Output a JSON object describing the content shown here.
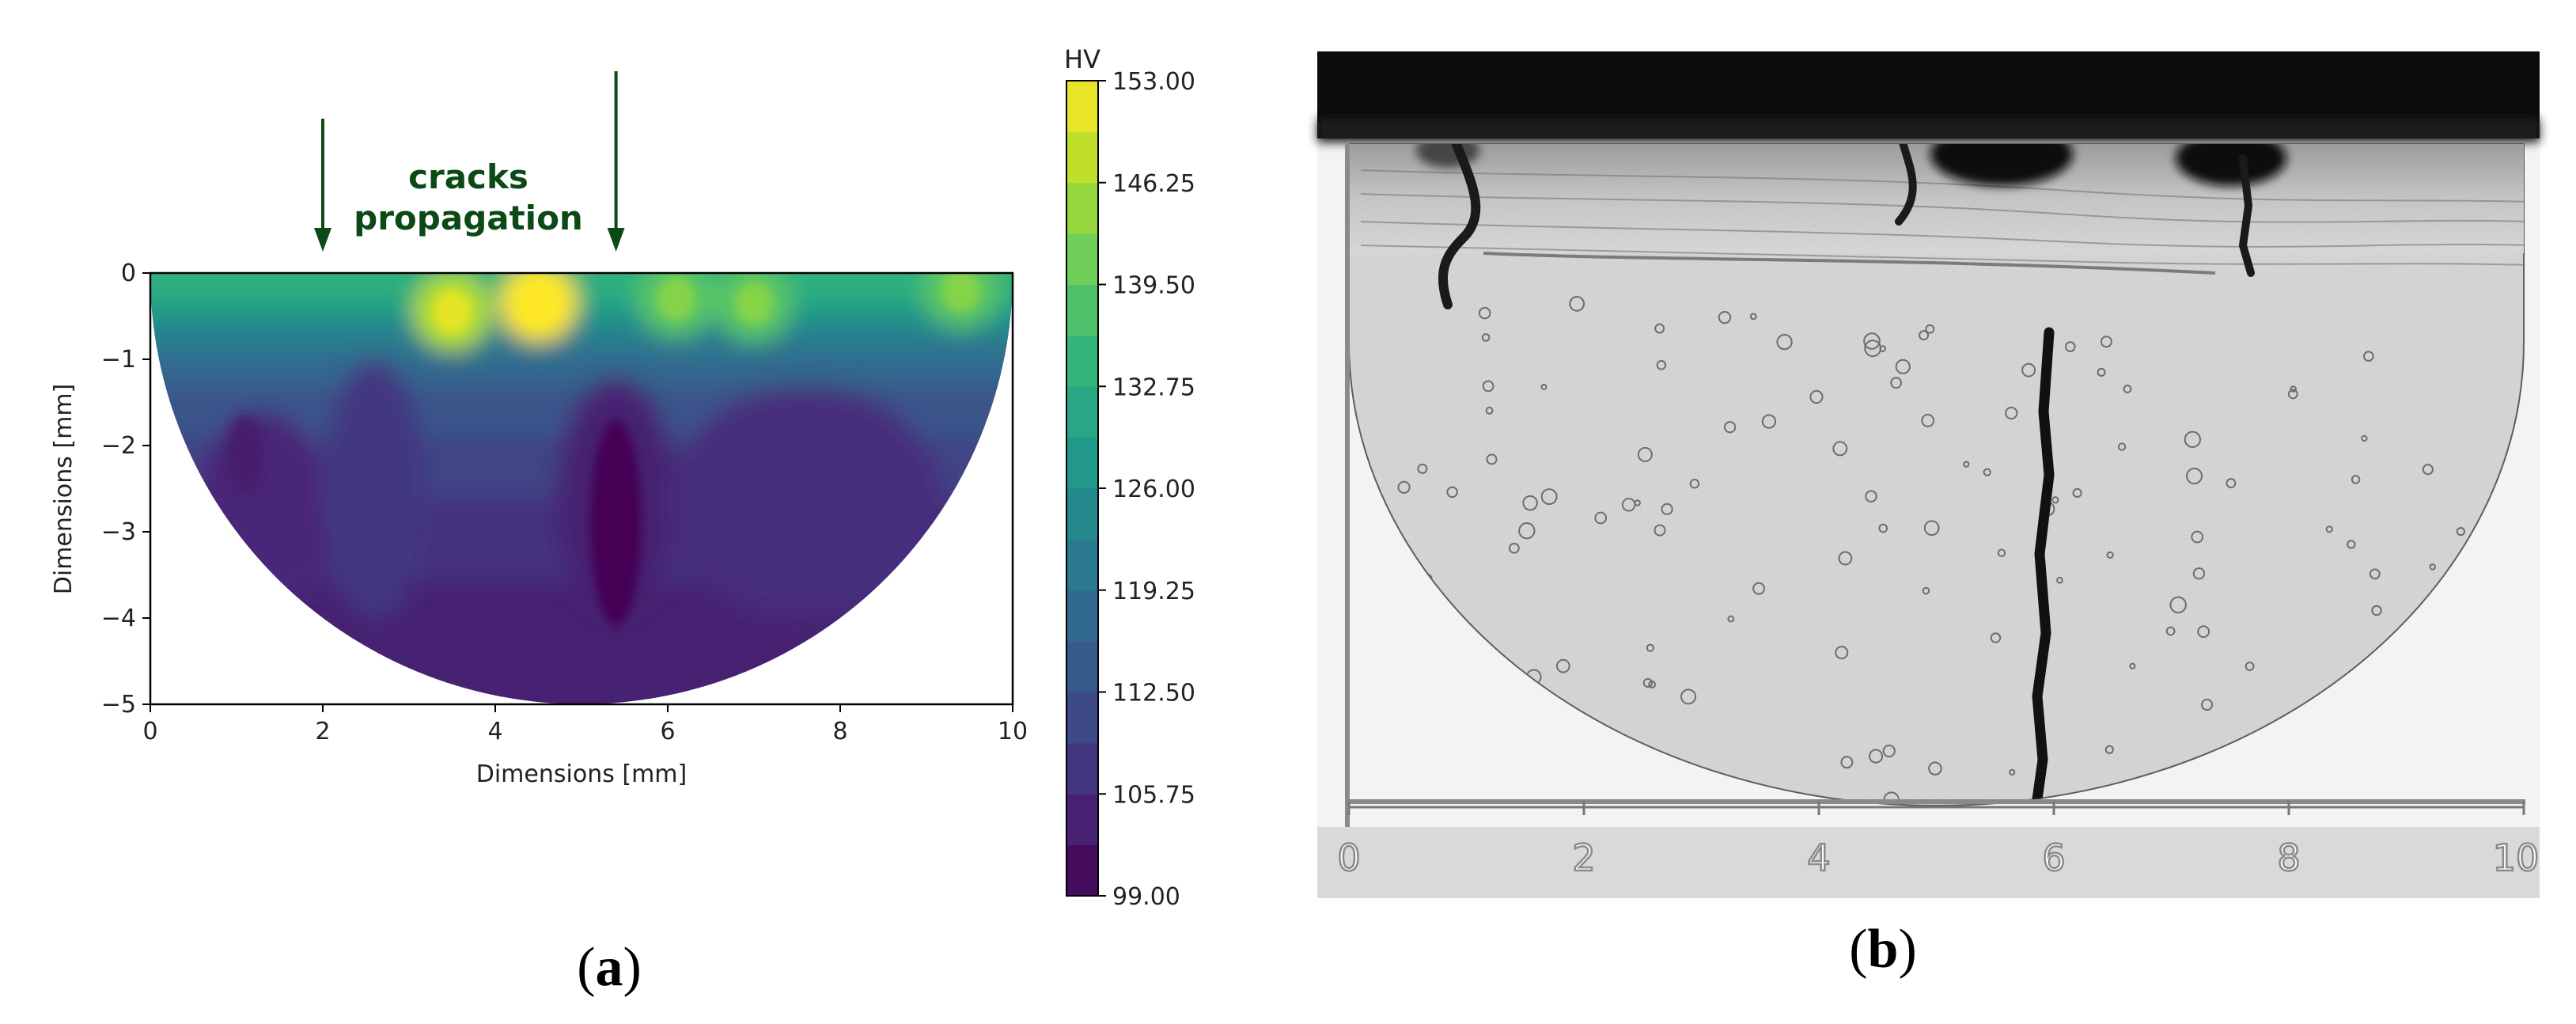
{
  "panels": {
    "a": {
      "label_open": "(",
      "label_letter": "a",
      "label_close": ")",
      "annotation": {
        "line1": "cracks",
        "line2": "propagation",
        "color": "#0b4a16",
        "arrow_x": [
          2.0,
          5.4
        ]
      },
      "chart_data": {
        "type": "heatmap",
        "subtype": "filled-contour",
        "shape": "half-disc",
        "xlabel": "Dimensions [mm]",
        "ylabel": "Dimensions [mm]",
        "xlim": [
          0,
          10
        ],
        "ylim": [
          -5,
          0
        ],
        "xticks": [
          "0",
          "2",
          "4",
          "6",
          "8",
          "10"
        ],
        "yticks": [
          "0",
          "−1",
          "−2",
          "−3",
          "−4",
          "−5"
        ],
        "grid": false,
        "colorbar": {
          "title": "HV",
          "range": [
            99.0,
            153.0
          ],
          "ticks": [
            "153.00",
            "146.25",
            "139.50",
            "132.75",
            "126.00",
            "119.25",
            "112.50",
            "105.75",
            "99.00"
          ],
          "colormap": "viridis",
          "levels": 16
        },
        "hotspots": [
          {
            "x": 3.5,
            "y": -0.45,
            "hv": 147
          },
          {
            "x": 4.5,
            "y": -0.35,
            "hv": 153
          },
          {
            "x": 6.1,
            "y": -0.3,
            "hv": 139
          },
          {
            "x": 7.0,
            "y": -0.35,
            "hv": 139
          },
          {
            "x": 9.4,
            "y": -0.2,
            "hv": 139
          }
        ],
        "lows": [
          {
            "x": 5.4,
            "y": -2.9,
            "hv": 99
          },
          {
            "x": 1.1,
            "y": -2.1,
            "hv": 103
          }
        ]
      }
    },
    "b": {
      "label_open": "(",
      "label_letter": "b",
      "label_close": ")",
      "scale_ticks": [
        "0",
        "2",
        "4",
        "6",
        "8",
        "10"
      ]
    }
  }
}
